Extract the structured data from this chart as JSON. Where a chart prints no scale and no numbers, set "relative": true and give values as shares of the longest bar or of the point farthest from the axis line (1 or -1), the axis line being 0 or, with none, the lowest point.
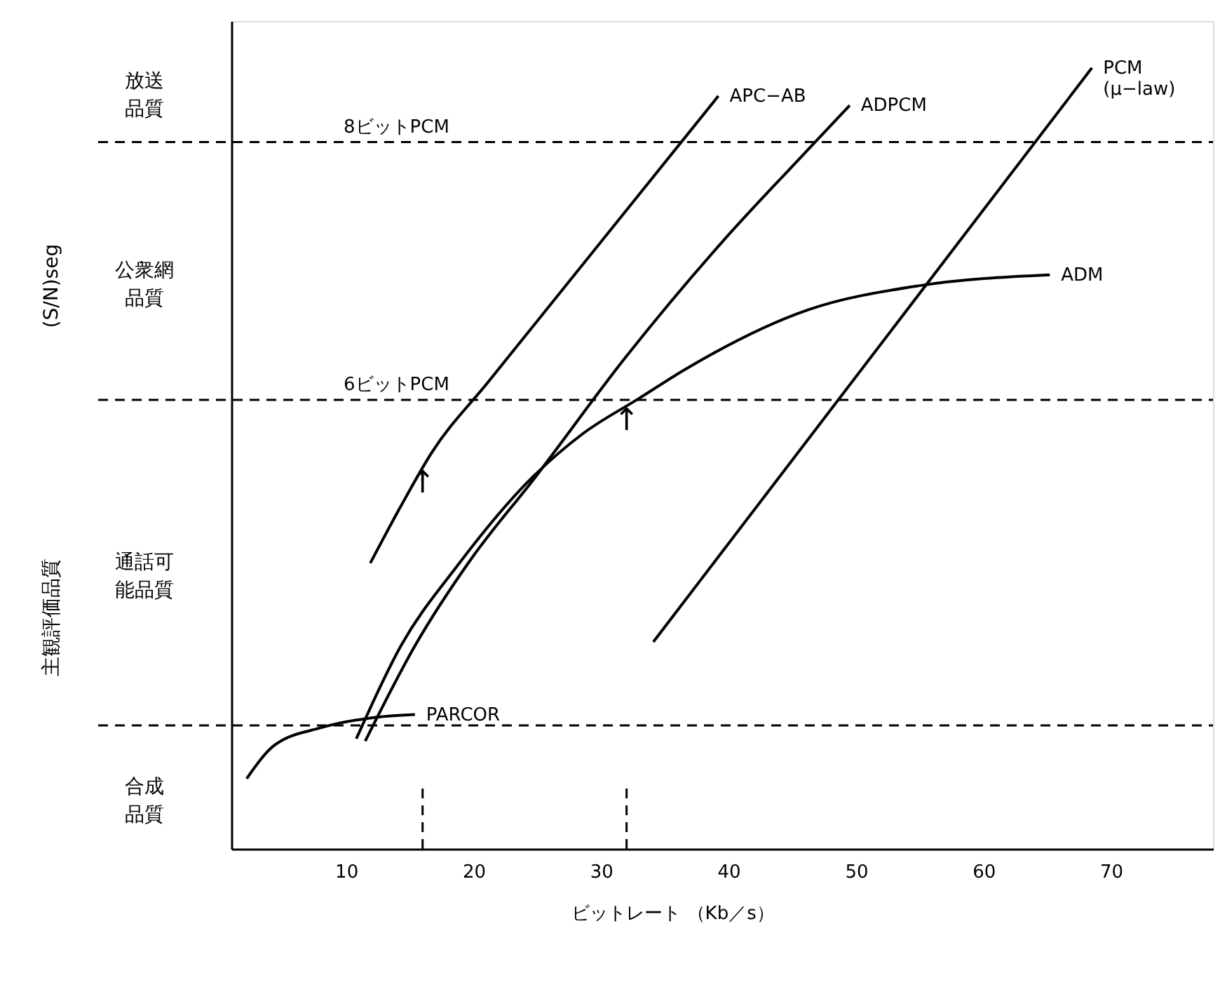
{
  "chart_data": {
    "type": "line",
    "relative": true,
    "xlabel": "ビットレート （Kb／s）",
    "xlim": [
      1,
      78
    ],
    "xticks": [
      10,
      20,
      30,
      40,
      50,
      60,
      70
    ],
    "grid": false,
    "marker": "none",
    "line_style": "solid",
    "series": [
      {
        "name": "APC−AB",
        "color": "#000000",
        "x": [
          11.9,
          14.3,
          16.7,
          21.2,
          39.2
        ],
        "values": [
          0.366,
          0.439,
          0.507,
          0.599,
          0.964
        ]
      },
      {
        "name": "ADPCM",
        "color": "#000000",
        "x": [
          11.5,
          15.4,
          19.8,
          24.7,
          31.9,
          39.6,
          45.4,
          49.5
        ],
        "values": [
          0.138,
          0.26,
          0.371,
          0.473,
          0.629,
          0.779,
          0.881,
          0.952
        ]
      },
      {
        "name": "PCM (μ−law)",
        "color": "#000000",
        "x": [
          34.1,
          68.5
        ],
        "values": [
          0.265,
          1.0
        ]
      },
      {
        "name": "ADM",
        "color": "#000000",
        "x": [
          10.8,
          14.3,
          18.7,
          24.2,
          28.6,
          33.0,
          36.6,
          46.2,
          54.9,
          65.2
        ],
        "values": [
          0.141,
          0.26,
          0.362,
          0.469,
          0.532,
          0.577,
          0.614,
          0.69,
          0.721,
          0.735
        ]
      },
      {
        "name": "PARCOR",
        "color": "#000000",
        "x": [
          2.2,
          4.4,
          8.0,
          12.1,
          15.4
        ],
        "values": [
          0.09,
          0.133,
          0.155,
          0.168,
          0.172
        ]
      }
    ],
    "ref_lines": [
      {
        "axis": "y",
        "value": 0.905,
        "label": "8ビットPCM",
        "line_style": "dashed"
      },
      {
        "axis": "y",
        "value": 0.575,
        "label": "6ビットPCM",
        "line_style": "dashed"
      },
      {
        "axis": "y",
        "value": 0.158,
        "label": null,
        "line_style": "dashed"
      },
      {
        "axis": "x",
        "value": 16,
        "label": null,
        "line_style": "dashed"
      },
      {
        "axis": "x",
        "value": 32,
        "label": null,
        "line_style": "dashed"
      }
    ],
    "annotations": [
      "放送品質",
      "公衆網品質",
      "通話可能品質",
      "合成品質",
      "(S/N)seg",
      "主観評価品質",
      {
        "text": "↑",
        "x": 16,
        "y": 0.487
      },
      {
        "text": "↑",
        "x": 32,
        "y": 0.567
      }
    ]
  }
}
